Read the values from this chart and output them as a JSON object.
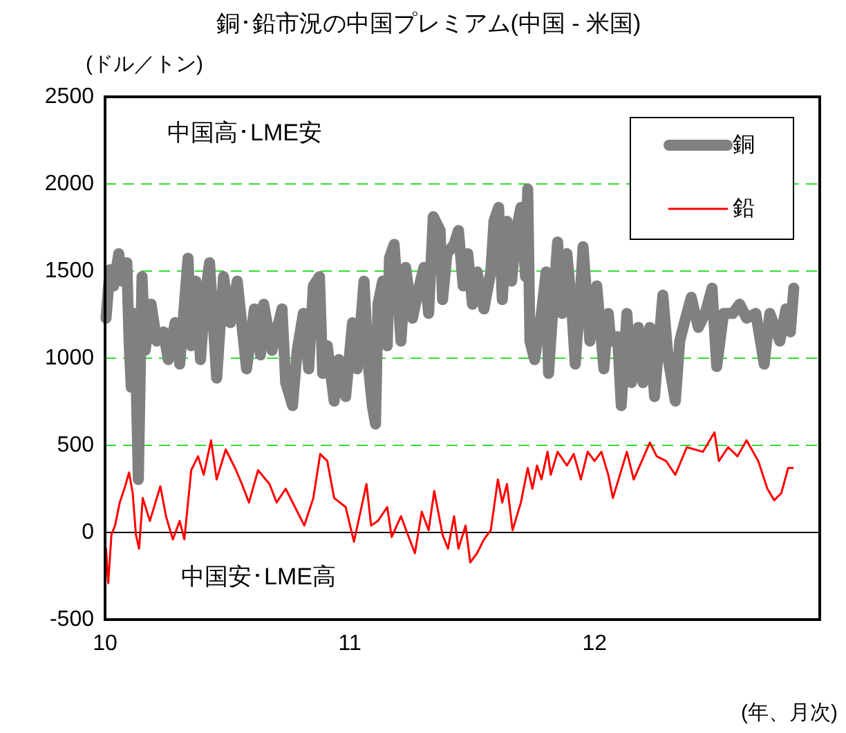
{
  "chart_data": {
    "type": "line",
    "title": "銅･鉛市況の中国プレミアム(中国 - 米国)",
    "ylabel": "(ドル／トン)",
    "xlabel": "(年、月次)",
    "annotations": [
      "中国高･LME安",
      "中国安･LME高"
    ],
    "xlim": [
      10,
      12.92
    ],
    "xticks": [
      10,
      11,
      12
    ],
    "ylim": [
      -500,
      2500
    ],
    "yticks": [
      -500,
      0,
      500,
      1000,
      1500,
      2000,
      2500
    ],
    "grid": "y",
    "legend": "top right",
    "marker": "none",
    "line_style": "solid",
    "ref_lines": [
      {
        "axis": "y",
        "value": 0,
        "color": "#000000",
        "line_style": "solid"
      }
    ],
    "series": [
      {
        "name": "銅",
        "color": "#808080",
        "x": [
          10.004,
          10.02,
          10.035,
          10.056,
          10.07,
          10.089,
          10.098,
          10.107,
          10.121,
          10.136,
          10.151,
          10.164,
          10.188,
          10.211,
          10.239,
          10.258,
          10.286,
          10.305,
          10.339,
          10.352,
          10.371,
          10.39,
          10.409,
          10.427,
          10.456,
          10.484,
          10.512,
          10.54,
          10.578,
          10.61,
          10.635,
          10.648,
          10.682,
          10.723,
          10.738,
          10.766,
          10.785,
          10.81,
          10.832,
          10.851,
          10.876,
          10.889,
          10.908,
          10.936,
          10.955,
          10.983,
          11.011,
          11.03,
          11.058,
          11.077,
          11.092,
          11.105,
          11.115,
          11.134,
          11.153,
          11.162,
          11.181,
          11.209,
          11.228,
          11.256,
          11.284,
          11.303,
          11.322,
          11.341,
          11.369,
          11.379,
          11.397,
          11.426,
          11.444,
          11.463,
          11.482,
          11.501,
          11.52,
          11.548,
          11.576,
          11.589,
          11.608,
          11.623,
          11.642,
          11.661,
          11.68,
          11.699,
          11.718,
          11.727,
          11.736,
          11.755,
          11.783,
          11.802,
          11.812,
          11.831,
          11.849,
          11.868,
          11.887,
          11.906,
          11.921,
          11.944,
          11.953,
          11.981,
          12.009,
          12.038,
          12.056,
          12.066,
          12.094,
          12.109,
          12.132,
          12.151,
          12.179,
          12.198,
          12.226,
          12.245,
          12.279,
          12.301,
          12.33,
          12.348,
          12.367,
          12.395,
          12.424,
          12.452,
          12.48,
          12.499,
          12.527,
          12.565,
          12.593,
          12.621,
          12.659,
          12.693,
          12.716,
          12.757,
          12.782,
          12.8,
          12.814
        ],
        "values": [
          1230,
          1508,
          1415,
          1600,
          1442,
          1548,
          1098,
          833,
          1257,
          304,
          1468,
          1045,
          1310,
          1098,
          1151,
          992,
          1204,
          966,
          1574,
          1071,
          1442,
          992,
          1362,
          1548,
          886,
          1468,
          1204,
          1442,
          939,
          1283,
          1019,
          1310,
          1045,
          1283,
          860,
          728,
          1045,
          1257,
          939,
          1415,
          1468,
          913,
          1071,
          754,
          992,
          780,
          1204,
          939,
          1442,
          939,
          728,
          622,
          1310,
          1442,
          1071,
          1574,
          1653,
          1098,
          1521,
          1230,
          1415,
          1521,
          1257,
          1812,
          1733,
          1336,
          1600,
          1653,
          1733,
          1415,
          1600,
          1310,
          1495,
          1283,
          1495,
          1786,
          1865,
          1336,
          1786,
          1442,
          1733,
          1865,
          1468,
          1971,
          1098,
          992,
          1257,
          1495,
          913,
          1310,
          1667,
          1257,
          1600,
          1310,
          966,
          1415,
          1640,
          1098,
          1415,
          939,
          1257,
          1098,
          1124,
          728,
          1257,
          860,
          1177,
          860,
          1177,
          780,
          1362,
          992,
          754,
          1098,
          1204,
          1349,
          1177,
          1257,
          1402,
          952,
          1257,
          1257,
          1310,
          1230,
          1257,
          966,
          1257,
          1098,
          1283,
          1151,
          1402
        ]
      },
      {
        "name": "鉛",
        "color": "#ff0000",
        "x": [
          10.004,
          10.013,
          10.026,
          10.041,
          10.06,
          10.079,
          10.098,
          10.113,
          10.126,
          10.139,
          10.154,
          10.183,
          10.226,
          10.249,
          10.277,
          10.305,
          10.324,
          10.352,
          10.38,
          10.403,
          10.433,
          10.456,
          10.493,
          10.531,
          10.559,
          10.588,
          10.625,
          10.672,
          10.701,
          10.738,
          10.776,
          10.814,
          10.851,
          10.879,
          10.908,
          10.936,
          10.983,
          11.017,
          11.068,
          11.087,
          11.115,
          11.153,
          11.171,
          11.209,
          11.237,
          11.266,
          11.294,
          11.322,
          11.345,
          11.379,
          11.401,
          11.426,
          11.444,
          11.473,
          11.492,
          11.52,
          11.548,
          11.576,
          11.605,
          11.623,
          11.642,
          11.665,
          11.699,
          11.727,
          11.746,
          11.765,
          11.783,
          11.808,
          11.821,
          11.849,
          11.887,
          11.915,
          11.944,
          11.972,
          12.0,
          12.028,
          12.056,
          12.075,
          12.132,
          12.16,
          12.226,
          12.254,
          12.292,
          12.33,
          12.377,
          12.443,
          12.49,
          12.508,
          12.546,
          12.584,
          12.621,
          12.669,
          12.706,
          12.734,
          12.763,
          12.791,
          12.81
        ],
        "values": [
          -93,
          -291,
          -13,
          40,
          172,
          251,
          344,
          225,
          -13,
          -93,
          198,
          66,
          265,
          93,
          -40,
          66,
          -40,
          357,
          437,
          331,
          529,
          304,
          476,
          370,
          278,
          172,
          357,
          278,
          172,
          251,
          146,
          40,
          198,
          450,
          410,
          198,
          146,
          -53,
          278,
          40,
          66,
          146,
          -26,
          93,
          -13,
          -119,
          119,
          13,
          238,
          -13,
          -93,
          93,
          -93,
          40,
          -172,
          -119,
          -40,
          13,
          304,
          172,
          278,
          13,
          172,
          370,
          251,
          384,
          304,
          463,
          331,
          463,
          384,
          450,
          304,
          463,
          410,
          463,
          331,
          198,
          463,
          304,
          516,
          437,
          410,
          331,
          489,
          463,
          574,
          410,
          489,
          437,
          529,
          410,
          251,
          185,
          225,
          370,
          370
        ]
      }
    ]
  }
}
